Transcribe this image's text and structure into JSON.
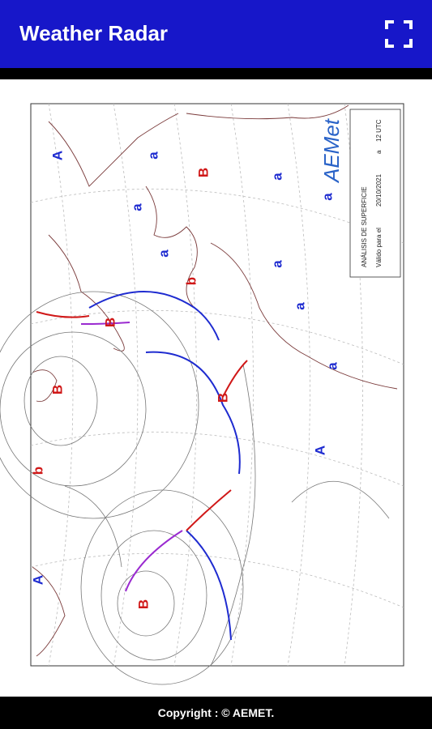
{
  "header": {
    "title": "Weather Radar"
  },
  "map": {
    "title": "ANÁLISIS DE SUPERFICIE",
    "valid_label": "Válido para el",
    "date": "20/10/2021",
    "time_sep": "a",
    "time": "12 UTC",
    "logo": "AEMet",
    "pressure_labels": [
      "A",
      "a",
      "B",
      "a",
      "a",
      "a",
      "a",
      "b",
      "a",
      "B",
      "a",
      "a",
      "B",
      "B",
      "A",
      "b",
      "A",
      "B"
    ]
  },
  "footer": {
    "copyright": "Copyright : © AEMET."
  }
}
